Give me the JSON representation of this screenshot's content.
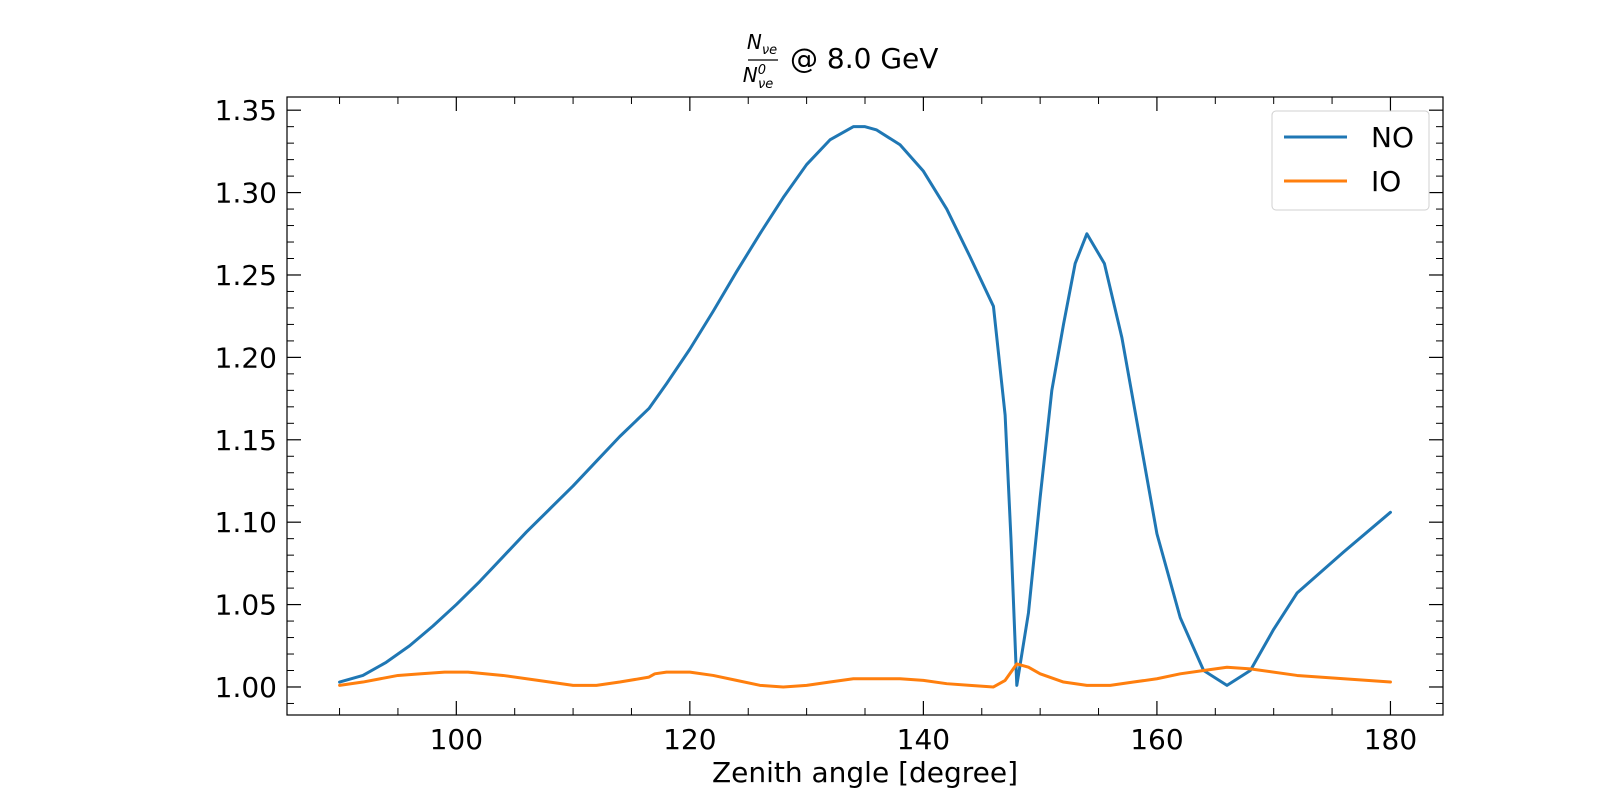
{
  "chart_data": {
    "type": "line",
    "title": {
      "numerator": "N",
      "numerator_sub": "νe",
      "denominator": "N",
      "denominator_sup": "0",
      "denominator_sub": "νe",
      "suffix": "@ 8.0 GeV"
    },
    "xlabel": "Zenith angle [degree]",
    "ylabel": "",
    "xlim": [
      85.5,
      184.5
    ],
    "ylim": [
      0.983,
      1.358
    ],
    "xticks": [
      100,
      120,
      140,
      160,
      180
    ],
    "xtick_labels": [
      "100",
      "120",
      "140",
      "160",
      "180"
    ],
    "yticks": [
      1.0,
      1.05,
      1.1,
      1.15,
      1.2,
      1.25,
      1.3,
      1.35
    ],
    "ytick_labels": [
      "1.00",
      "1.05",
      "1.10",
      "1.15",
      "1.20",
      "1.25",
      "1.30",
      "1.35"
    ],
    "grid": false,
    "legend_position": "top-right",
    "series": [
      {
        "name": "NO",
        "color": "#1f77b4",
        "points": [
          [
            90,
            1.003
          ],
          [
            92,
            1.007
          ],
          [
            94,
            1.015
          ],
          [
            96,
            1.025
          ],
          [
            98,
            1.037
          ],
          [
            100,
            1.05
          ],
          [
            102,
            1.064
          ],
          [
            104,
            1.079
          ],
          [
            106,
            1.094
          ],
          [
            108,
            1.108
          ],
          [
            110,
            1.122
          ],
          [
            112,
            1.137
          ],
          [
            114,
            1.152
          ],
          [
            116.5,
            1.169
          ],
          [
            118,
            1.184
          ],
          [
            120,
            1.205
          ],
          [
            122,
            1.228
          ],
          [
            124,
            1.252
          ],
          [
            126,
            1.275
          ],
          [
            128,
            1.297
          ],
          [
            130,
            1.317
          ],
          [
            132,
            1.332
          ],
          [
            134,
            1.34
          ],
          [
            135,
            1.34
          ],
          [
            136,
            1.338
          ],
          [
            138,
            1.329
          ],
          [
            140,
            1.313
          ],
          [
            142,
            1.29
          ],
          [
            144,
            1.261
          ],
          [
            146,
            1.231
          ],
          [
            147,
            1.165
          ],
          [
            147.5,
            1.09
          ],
          [
            148,
            1.001
          ],
          [
            149,
            1.045
          ],
          [
            150,
            1.115
          ],
          [
            151,
            1.18
          ],
          [
            152,
            1.22
          ],
          [
            153,
            1.257
          ],
          [
            154,
            1.275
          ],
          [
            155.5,
            1.257
          ],
          [
            157,
            1.212
          ],
          [
            160,
            1.093
          ],
          [
            162,
            1.042
          ],
          [
            164,
            1.01
          ],
          [
            166,
            1.001
          ],
          [
            168,
            1.01
          ],
          [
            170,
            1.035
          ],
          [
            172,
            1.057
          ],
          [
            176,
            1.082
          ],
          [
            180,
            1.106
          ]
        ]
      },
      {
        "name": "IO",
        "color": "#ff7f0e",
        "points": [
          [
            90,
            1.001
          ],
          [
            92,
            1.003
          ],
          [
            95,
            1.007
          ],
          [
            97,
            1.008
          ],
          [
            99,
            1.009
          ],
          [
            101,
            1.009
          ],
          [
            104,
            1.007
          ],
          [
            107,
            1.004
          ],
          [
            110,
            1.001
          ],
          [
            112,
            1.001
          ],
          [
            114,
            1.003
          ],
          [
            116.5,
            1.006
          ],
          [
            117,
            1.008
          ],
          [
            118,
            1.009
          ],
          [
            120,
            1.009
          ],
          [
            122,
            1.007
          ],
          [
            124,
            1.004
          ],
          [
            126,
            1.001
          ],
          [
            128,
            1.0
          ],
          [
            130,
            1.001
          ],
          [
            132,
            1.003
          ],
          [
            134,
            1.005
          ],
          [
            136,
            1.005
          ],
          [
            138,
            1.005
          ],
          [
            140,
            1.004
          ],
          [
            142,
            1.002
          ],
          [
            144,
            1.001
          ],
          [
            146,
            1.0
          ],
          [
            147,
            1.004
          ],
          [
            148,
            1.014
          ],
          [
            149,
            1.012
          ],
          [
            150,
            1.008
          ],
          [
            152,
            1.003
          ],
          [
            154,
            1.001
          ],
          [
            156,
            1.001
          ],
          [
            158,
            1.003
          ],
          [
            160,
            1.005
          ],
          [
            162,
            1.008
          ],
          [
            164,
            1.01
          ],
          [
            166,
            1.012
          ],
          [
            168,
            1.011
          ],
          [
            172,
            1.007
          ],
          [
            176,
            1.005
          ],
          [
            180,
            1.003
          ]
        ]
      }
    ]
  }
}
